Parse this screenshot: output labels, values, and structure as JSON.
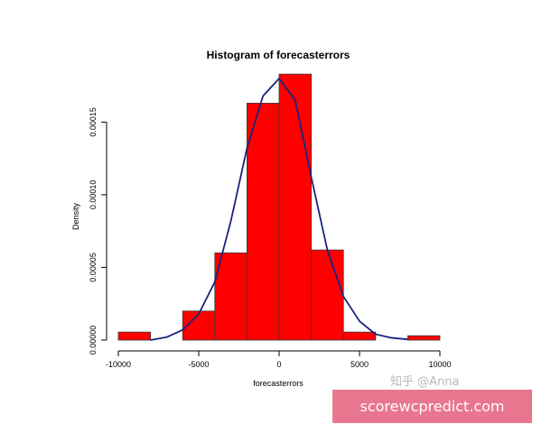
{
  "chart_data": {
    "type": "bar",
    "title": "Histogram of forecasterrors",
    "xlabel": "forecasterrors",
    "ylabel": "Density",
    "xlim": [
      -10000,
      10000
    ],
    "ylim": [
      0,
      0.00018
    ],
    "x_ticks": [
      "-10000",
      "-5000",
      "0",
      "5000",
      "10000"
    ],
    "y_ticks": [
      "0.00000",
      "0.00005",
      "0.00010",
      "0.00015"
    ],
    "bins": [
      {
        "start": -10000,
        "end": -8000,
        "density": 5.5e-06
      },
      {
        "start": -8000,
        "end": -6000,
        "density": 0
      },
      {
        "start": -6000,
        "end": -4000,
        "density": 2e-05
      },
      {
        "start": -4000,
        "end": -2000,
        "density": 6e-05
      },
      {
        "start": -2000,
        "end": 0,
        "density": 0.000163
      },
      {
        "start": 0,
        "end": 2000,
        "density": 0.000183
      },
      {
        "start": 2000,
        "end": 4000,
        "density": 6.2e-05
      },
      {
        "start": 4000,
        "end": 6000,
        "density": 5.5e-06
      },
      {
        "start": 6000,
        "end": 8000,
        "density": 0
      },
      {
        "start": 8000,
        "end": 10000,
        "density": 3e-06
      }
    ],
    "density_curve": {
      "x": [
        -8000,
        -7000,
        -6000,
        -5000,
        -4000,
        -3000,
        -2000,
        -1000,
        0,
        1000,
        2000,
        3000,
        4000,
        5000,
        6000,
        7000,
        8000
      ],
      "y": [
        0,
        2e-06,
        7e-06,
        1.8e-05,
        4e-05,
        8.2e-05,
        0.000132,
        0.000168,
        0.00018,
        0.000165,
        0.000112,
        6.2e-05,
        3e-05,
        1.3e-05,
        4e-06,
        1.5e-06,
        5e-07
      ]
    },
    "bar_color": "#ff0000",
    "curve_color": "#1a237e"
  },
  "watermark": {
    "text": "知乎 @Anna"
  },
  "banner": {
    "text": "scorewcpredict.com",
    "color": "#e8768f"
  }
}
